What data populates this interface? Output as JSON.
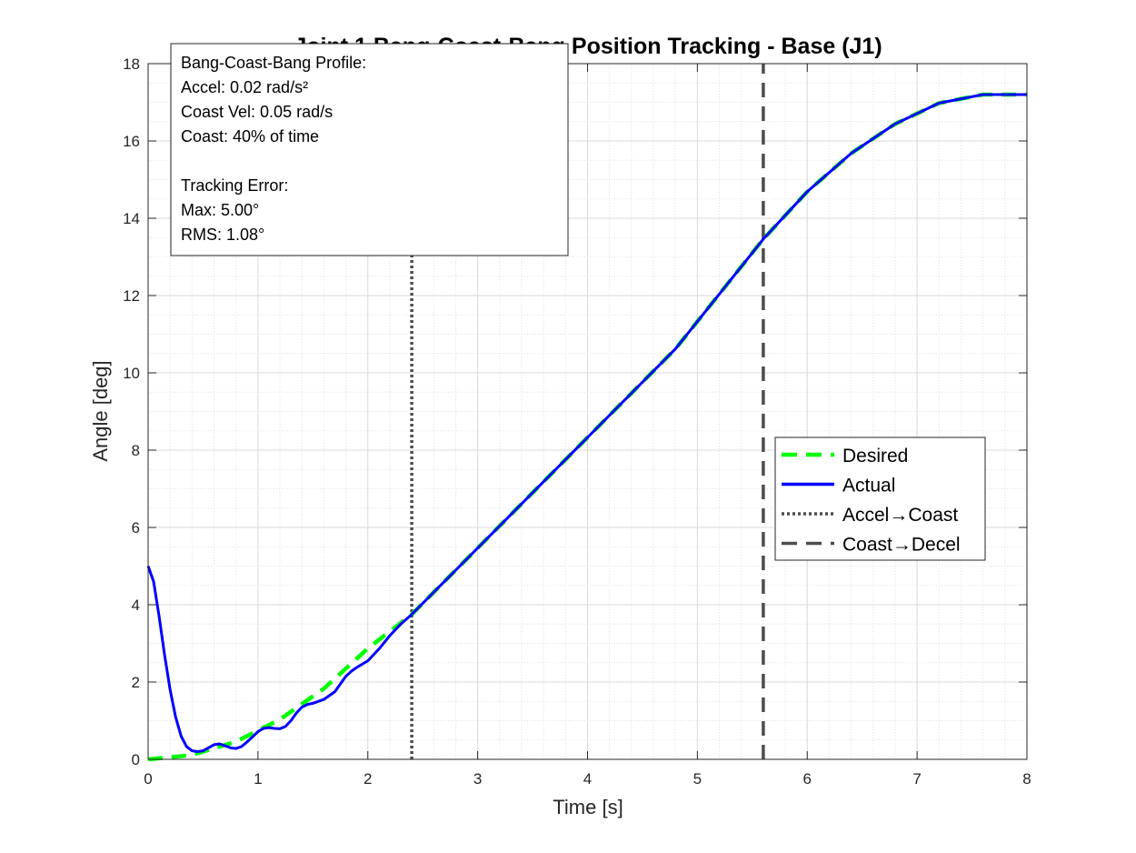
{
  "chart_data": {
    "type": "line",
    "title": "Joint 1 Bang-Coast-Bang Position Tracking - Base (J1)",
    "xlabel": "Time [s]",
    "ylabel": "Angle [deg]",
    "xlim": [
      0,
      8
    ],
    "ylim": [
      0,
      18
    ],
    "xticks": [
      "0",
      "1",
      "2",
      "3",
      "4",
      "5",
      "6",
      "7",
      "8"
    ],
    "yticks": [
      "0",
      "2",
      "4",
      "6",
      "8",
      "10",
      "12",
      "14",
      "16",
      "18"
    ],
    "grid": true,
    "minor_grid": true,
    "legend_position": "right-middle",
    "series": [
      {
        "name": "Desired",
        "color": "#00ff00",
        "style": "dashed",
        "x": [
          0,
          0.4,
          0.8,
          1.2,
          1.6,
          2.0,
          2.4,
          3.2,
          4.0,
          4.8,
          5.6,
          6.0,
          6.4,
          6.8,
          7.2,
          7.6,
          8.0
        ],
        "y": [
          0,
          0.11,
          0.46,
          1.03,
          1.83,
          2.87,
          3.75,
          6.04,
          8.33,
          10.62,
          13.46,
          14.69,
          15.68,
          16.44,
          16.98,
          17.2,
          17.2
        ]
      },
      {
        "name": "Actual",
        "color": "#0000ff",
        "style": "solid",
        "x": [
          0,
          0.05,
          0.1,
          0.15,
          0.2,
          0.25,
          0.3,
          0.35,
          0.4,
          0.45,
          0.5,
          0.55,
          0.6,
          0.65,
          0.7,
          0.75,
          0.8,
          0.85,
          0.9,
          0.95,
          1.0,
          1.05,
          1.1,
          1.15,
          1.2,
          1.25,
          1.3,
          1.35,
          1.4,
          1.45,
          1.5,
          1.6,
          1.7,
          1.75,
          1.8,
          1.85,
          1.9,
          2.0,
          2.1,
          2.2,
          2.3,
          2.4,
          3.2,
          4.0,
          4.8,
          5.6,
          6.0,
          6.4,
          6.8,
          7.2,
          7.6,
          8.0
        ],
        "y": [
          5.0,
          4.6,
          3.7,
          2.7,
          1.8,
          1.1,
          0.6,
          0.33,
          0.22,
          0.2,
          0.22,
          0.3,
          0.38,
          0.4,
          0.35,
          0.3,
          0.28,
          0.33,
          0.45,
          0.58,
          0.72,
          0.8,
          0.82,
          0.8,
          0.79,
          0.85,
          1.0,
          1.2,
          1.35,
          1.42,
          1.45,
          1.55,
          1.75,
          1.95,
          2.15,
          2.28,
          2.38,
          2.55,
          2.85,
          3.2,
          3.5,
          3.75,
          6.04,
          8.33,
          10.62,
          13.46,
          14.69,
          15.68,
          16.44,
          16.98,
          17.2,
          17.2
        ]
      },
      {
        "name": "Accel→Coast",
        "color": "#4d4d4d",
        "style": "dotted",
        "x": [
          2.4,
          2.4
        ],
        "y": [
          0,
          18
        ]
      },
      {
        "name": "Coast→Decel",
        "color": "#4d4d4d",
        "style": "dashed",
        "x": [
          5.6,
          5.6
        ],
        "y": [
          0,
          18
        ]
      }
    ],
    "annotation_lines": [
      "Bang-Coast-Bang Profile:",
      "Accel: 0.02 rad/s²",
      "Coast Vel: 0.05 rad/s",
      "Coast: 40% of time",
      "",
      "Tracking Error:",
      "Max: 5.00°",
      "RMS: 1.08°"
    ]
  }
}
